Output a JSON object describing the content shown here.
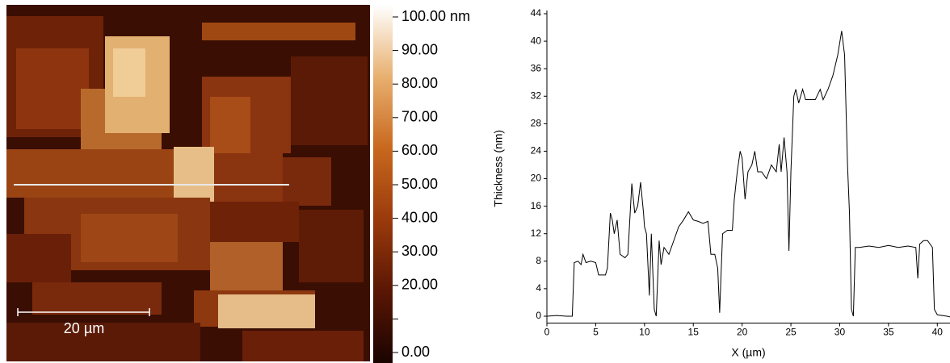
{
  "chart_data": [
    {
      "type": "heatmap",
      "scale_bar": "20 µm",
      "clim": [
        0,
        100
      ],
      "colorbar_ticks": [
        {
          "value": 100,
          "label": "100.00 nm"
        },
        {
          "value": 90,
          "label": "90.00"
        },
        {
          "value": 80,
          "label": "80.00"
        },
        {
          "value": 70,
          "label": "70.00"
        },
        {
          "value": 60,
          "label": "60.00"
        },
        {
          "value": 50,
          "label": "50.00"
        },
        {
          "value": 40,
          "label": "40.00"
        },
        {
          "value": 30,
          "label": "30.00"
        },
        {
          "value": 20,
          "label": "20.00"
        },
        {
          "value": 10,
          "label": ""
        },
        {
          "value": 0,
          "label": "0.00"
        }
      ]
    },
    {
      "type": "line",
      "x_label": "X (µm)",
      "y_label": "Thickness (nm)",
      "color": "#000000",
      "xlim": [
        0,
        41.3
      ],
      "ylim": [
        -1,
        44
      ],
      "xticks": [
        0,
        5,
        10,
        15,
        20,
        25,
        30,
        35,
        40
      ],
      "yticks": [
        0,
        4,
        8,
        12,
        16,
        20,
        24,
        28,
        32,
        36,
        40,
        44
      ],
      "x": [
        0,
        1,
        2,
        2.6,
        2.8,
        3.2,
        3.5,
        3.7,
        4,
        4.5,
        5,
        5.3,
        6,
        6.2,
        6.5,
        6.7,
        6.9,
        7.2,
        7.5,
        8,
        8.3,
        8.7,
        9,
        9.3,
        9.6,
        9.9,
        10,
        10.2,
        10.5,
        10.7,
        11,
        11.2,
        11.5,
        11.7,
        12,
        12.5,
        13,
        13.5,
        14,
        14.5,
        15,
        15.5,
        16,
        16.5,
        16.8,
        17.2,
        17.5,
        17.7,
        18,
        18.5,
        19,
        19.2,
        19.5,
        19.8,
        20,
        20.3,
        20.6,
        21,
        21.3,
        21.6,
        22,
        22.5,
        23,
        23.5,
        23.8,
        24,
        24.3,
        24.6,
        24.8,
        25,
        25.3,
        25.5,
        25.8,
        26.2,
        26.5,
        27,
        27.5,
        28,
        28.3,
        28.8,
        29.3,
        29.8,
        30.2,
        30.5,
        30.8,
        31,
        31.2,
        31.4,
        31.6,
        32,
        33,
        34,
        35,
        36,
        37,
        37.8,
        38,
        38.2,
        38.6,
        39,
        39.5,
        39.7,
        40,
        41,
        41.3
      ],
      "values": [
        0,
        0.1,
        0,
        0,
        7.8,
        8,
        7.5,
        9,
        7.8,
        8,
        7.8,
        6,
        6,
        7,
        15,
        14,
        12,
        14,
        9,
        8.5,
        9,
        19.3,
        15,
        16,
        19.5,
        15,
        13,
        12,
        3,
        12,
        1,
        0,
        11,
        7.5,
        10,
        9,
        11,
        13,
        14,
        15.2,
        14,
        13.8,
        13.5,
        13.8,
        9,
        9,
        7,
        0.5,
        12,
        12.5,
        12.5,
        17,
        21,
        24,
        23,
        17,
        21,
        22,
        24,
        21,
        21,
        20,
        22,
        21,
        25,
        21,
        26,
        21,
        9.5,
        21,
        32,
        33,
        31,
        33,
        31.5,
        31.5,
        31.5,
        33,
        31.5,
        33,
        35,
        38,
        41.5,
        38,
        22,
        15,
        1,
        0,
        10,
        10,
        10.2,
        10,
        10.3,
        10,
        10.2,
        10,
        5.5,
        10.5,
        11,
        11,
        10,
        1,
        0.2,
        0,
        -0.1
      ]
    }
  ]
}
